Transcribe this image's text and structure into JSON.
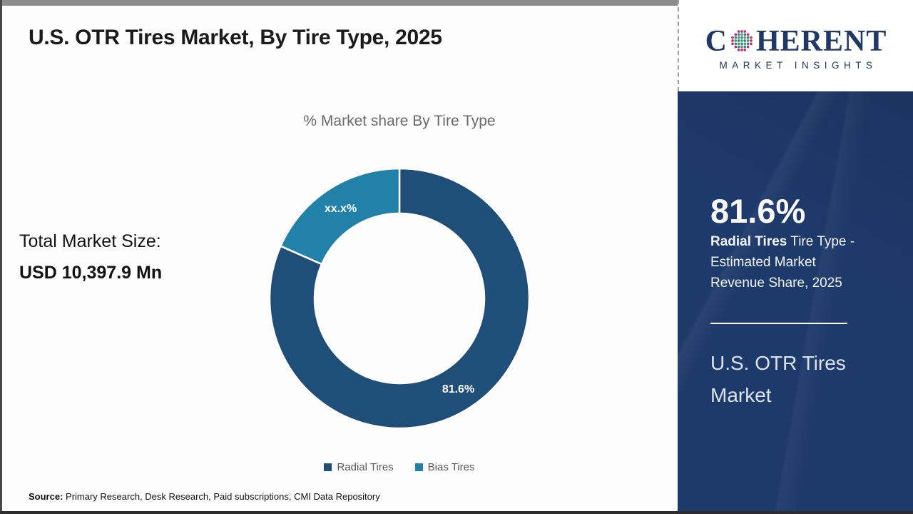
{
  "header": {
    "title": "U.S. OTR Tires Market, By Tire Type, 2025"
  },
  "logo": {
    "brand_c": "C",
    "brand_rest": "HERENT",
    "tagline": "MARKET INSIGHTS"
  },
  "left_panel": {
    "label": "Total Market Size:",
    "value": "USD 10,397.9 Mn"
  },
  "chart_data": {
    "type": "pie",
    "subtype": "donut",
    "title": "% Market share By Tire Type",
    "categories": [
      "Radial Tires",
      "Bias Tires"
    ],
    "values": [
      81.6,
      18.4
    ],
    "labels": [
      "81.6%",
      "xx.x%"
    ],
    "colors": [
      "#1f4e79",
      "#2181a9"
    ],
    "legend_position": "bottom",
    "start_angle_deg": 0,
    "direction": "clockwise"
  },
  "side_panel": {
    "background": "#1e3a6b",
    "stat_value": "81.6%",
    "stat_bold": "Radial Tires",
    "stat_rest": " Tire Type - Estimated Market Revenue Share, 2025",
    "market_name": "U.S. OTR Tires Market"
  },
  "footer": {
    "source_label": "Source:",
    "source_text": " Primary Research, Desk Research, Paid subscriptions, CMI Data Repository"
  }
}
